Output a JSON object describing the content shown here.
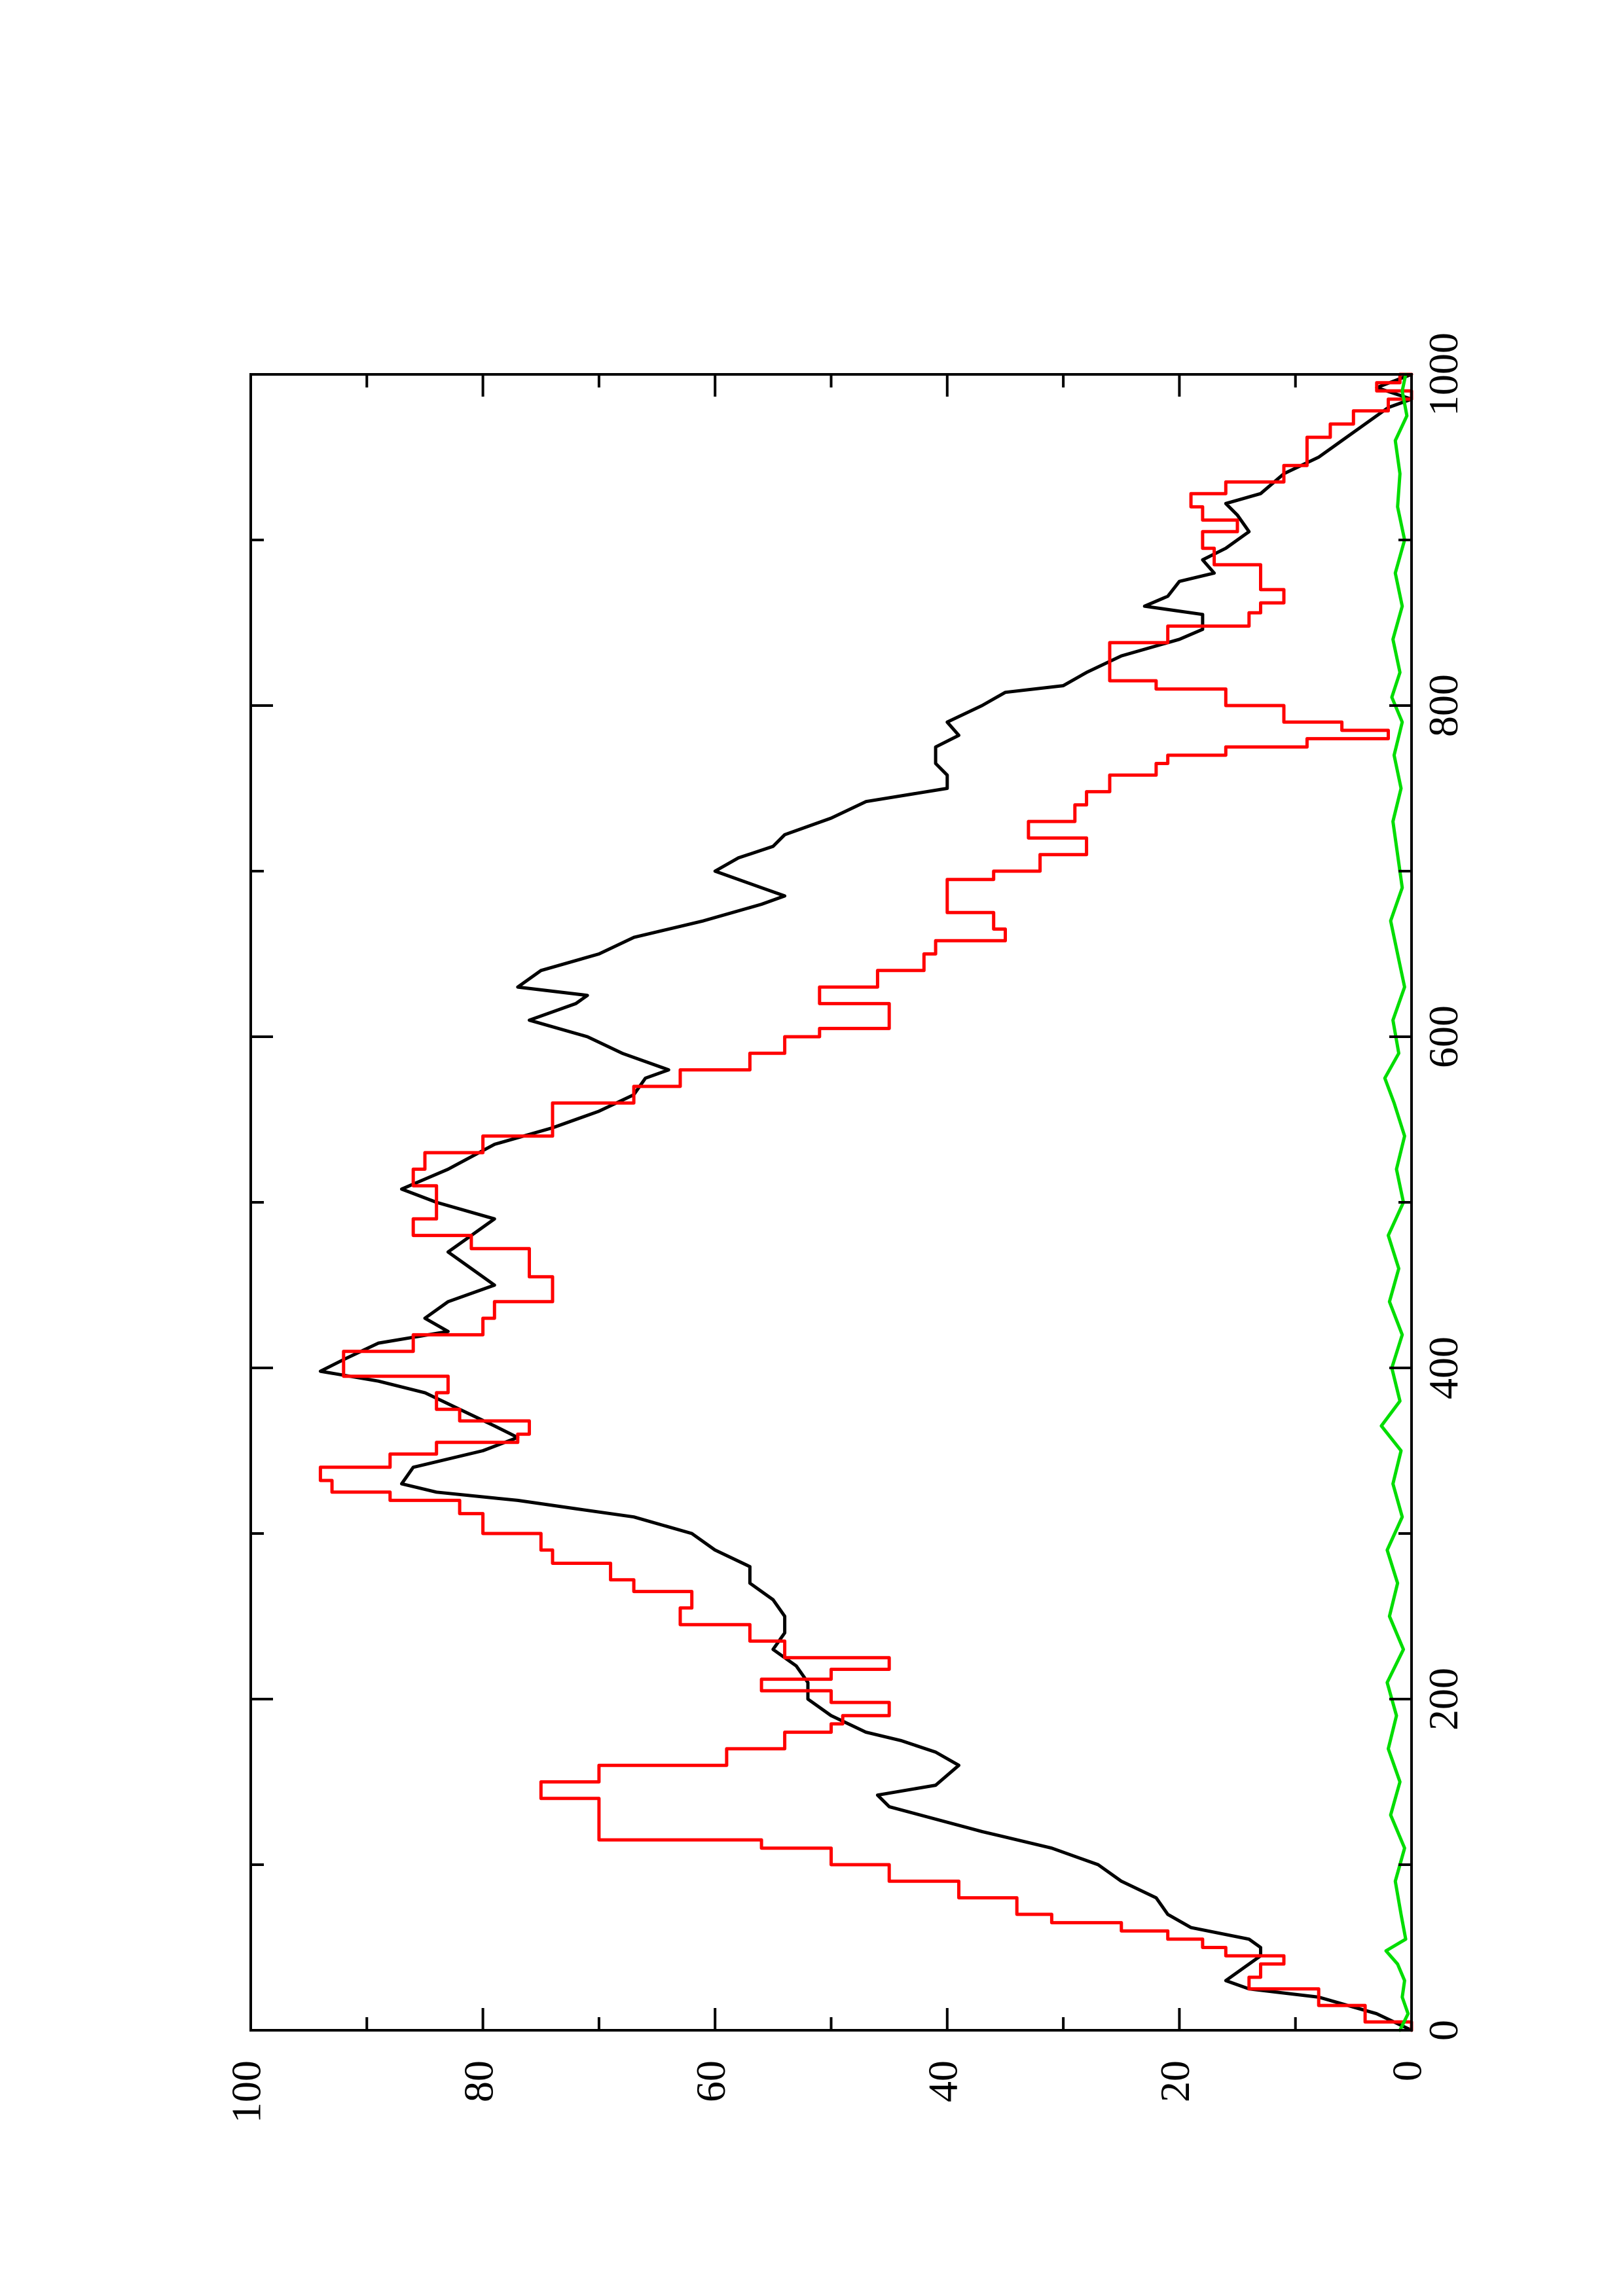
{
  "chart_data": {
    "type": "line",
    "orientation": "rotated-90-ccw",
    "xlim": [
      0,
      1000
    ],
    "ylim": [
      0,
      100
    ],
    "x_ticks": [
      0,
      200,
      400,
      600,
      800,
      1000
    ],
    "x_tick_labels": [
      "0",
      "200",
      "400",
      "600",
      "800",
      "1000"
    ],
    "x_minor_ticks": [
      100,
      300,
      500,
      700,
      900
    ],
    "y_ticks": [
      0,
      20,
      40,
      60,
      80,
      100
    ],
    "y_tick_labels": [
      "0",
      "20",
      "40",
      "60",
      "80",
      "100"
    ],
    "y_minor_ticks": [
      10,
      30,
      50,
      70,
      90
    ],
    "grid": false,
    "legend": "none",
    "series": [
      {
        "color": "#000000",
        "style": "smooth",
        "points": [
          [
            0,
            0
          ],
          [
            10,
            3
          ],
          [
            20,
            8
          ],
          [
            25,
            14
          ],
          [
            30,
            16
          ],
          [
            40,
            14
          ],
          [
            45,
            13
          ],
          [
            50,
            13
          ],
          [
            55,
            14
          ],
          [
            62,
            19
          ],
          [
            70,
            21
          ],
          [
            80,
            22
          ],
          [
            90,
            25
          ],
          [
            100,
            27
          ],
          [
            110,
            31
          ],
          [
            120,
            37
          ],
          [
            135,
            45
          ],
          [
            142,
            46
          ],
          [
            148,
            41
          ],
          [
            160,
            39
          ],
          [
            168,
            41
          ],
          [
            175,
            44
          ],
          [
            180,
            47
          ],
          [
            190,
            50
          ],
          [
            200,
            52
          ],
          [
            210,
            52
          ],
          [
            220,
            53
          ],
          [
            230,
            55
          ],
          [
            240,
            54
          ],
          [
            250,
            54
          ],
          [
            260,
            55
          ],
          [
            270,
            57
          ],
          [
            280,
            57
          ],
          [
            290,
            60
          ],
          [
            300,
            62
          ],
          [
            310,
            67
          ],
          [
            315,
            72
          ],
          [
            320,
            77
          ],
          [
            325,
            84
          ],
          [
            330,
            87
          ],
          [
            340,
            86
          ],
          [
            350,
            80
          ],
          [
            358,
            77
          ],
          [
            365,
            79
          ],
          [
            375,
            82
          ],
          [
            385,
            85
          ],
          [
            392,
            89
          ],
          [
            398,
            94
          ],
          [
            405,
            92
          ],
          [
            415,
            89
          ],
          [
            422,
            83
          ],
          [
            430,
            85
          ],
          [
            440,
            83
          ],
          [
            450,
            79
          ],
          [
            460,
            81
          ],
          [
            470,
            83
          ],
          [
            480,
            81
          ],
          [
            490,
            79
          ],
          [
            500,
            84
          ],
          [
            508,
            87
          ],
          [
            520,
            83
          ],
          [
            535,
            79
          ],
          [
            545,
            74
          ],
          [
            555,
            70
          ],
          [
            565,
            67
          ],
          [
            575,
            66
          ],
          [
            580,
            64
          ],
          [
            590,
            68
          ],
          [
            600,
            71
          ],
          [
            610,
            76
          ],
          [
            620,
            72
          ],
          [
            625,
            71
          ],
          [
            630,
            77
          ],
          [
            640,
            75
          ],
          [
            650,
            70
          ],
          [
            660,
            67
          ],
          [
            670,
            61
          ],
          [
            680,
            56
          ],
          [
            685,
            54
          ],
          [
            690,
            56
          ],
          [
            700,
            60
          ],
          [
            708,
            58
          ],
          [
            715,
            55
          ],
          [
            722,
            54
          ],
          [
            732,
            50
          ],
          [
            742,
            47
          ],
          [
            750,
            40
          ],
          [
            758,
            40
          ],
          [
            765,
            41
          ],
          [
            775,
            41
          ],
          [
            782,
            39
          ],
          [
            790,
            40
          ],
          [
            800,
            37
          ],
          [
            808,
            35
          ],
          [
            812,
            30
          ],
          [
            820,
            28
          ],
          [
            830,
            25
          ],
          [
            840,
            20
          ],
          [
            846,
            18
          ],
          [
            855,
            18
          ],
          [
            860,
            23
          ],
          [
            866,
            21
          ],
          [
            875,
            20
          ],
          [
            880,
            17
          ],
          [
            888,
            18
          ],
          [
            895,
            16
          ],
          [
            905,
            14
          ],
          [
            915,
            15
          ],
          [
            922,
            16
          ],
          [
            928,
            13
          ],
          [
            940,
            11
          ],
          [
            950,
            8
          ],
          [
            960,
            6
          ],
          [
            970,
            4
          ],
          [
            980,
            2
          ],
          [
            985,
            0
          ],
          [
            992,
            3
          ],
          [
            1000,
            0
          ]
        ]
      },
      {
        "color": "#ff0000",
        "style": "step",
        "points": [
          [
            0,
            0
          ],
          [
            5,
            4
          ],
          [
            15,
            8
          ],
          [
            25,
            14
          ],
          [
            32,
            13
          ],
          [
            40,
            11
          ],
          [
            45,
            16
          ],
          [
            50,
            18
          ],
          [
            55,
            21
          ],
          [
            60,
            25
          ],
          [
            65,
            31
          ],
          [
            70,
            34
          ],
          [
            80,
            39
          ],
          [
            90,
            45
          ],
          [
            100,
            50
          ],
          [
            110,
            56
          ],
          [
            115,
            70
          ],
          [
            120,
            70
          ],
          [
            130,
            70
          ],
          [
            140,
            75
          ],
          [
            145,
            75
          ],
          [
            150,
            70
          ],
          [
            160,
            59
          ],
          [
            170,
            54
          ],
          [
            180,
            50
          ],
          [
            185,
            49
          ],
          [
            190,
            45
          ],
          [
            198,
            50
          ],
          [
            205,
            56
          ],
          [
            212,
            50
          ],
          [
            218,
            45
          ],
          [
            225,
            54
          ],
          [
            235,
            57
          ],
          [
            245,
            63
          ],
          [
            255,
            62
          ],
          [
            265,
            67
          ],
          [
            272,
            69
          ],
          [
            282,
            74
          ],
          [
            290,
            75
          ],
          [
            300,
            80
          ],
          [
            312,
            82
          ],
          [
            320,
            88
          ],
          [
            325,
            93
          ],
          [
            332,
            94
          ],
          [
            340,
            88
          ],
          [
            348,
            84
          ],
          [
            355,
            77
          ],
          [
            360,
            76
          ],
          [
            368,
            82
          ],
          [
            375,
            84
          ],
          [
            385,
            83
          ],
          [
            395,
            92
          ],
          [
            402,
            92
          ],
          [
            410,
            86
          ],
          [
            420,
            80
          ],
          [
            430,
            79
          ],
          [
            440,
            74
          ],
          [
            450,
            74
          ],
          [
            455,
            76
          ],
          [
            465,
            76
          ],
          [
            472,
            81
          ],
          [
            480,
            86
          ],
          [
            490,
            84
          ],
          [
            500,
            84
          ],
          [
            510,
            86
          ],
          [
            520,
            85
          ],
          [
            530,
            80
          ],
          [
            540,
            74
          ],
          [
            550,
            74
          ],
          [
            560,
            67
          ],
          [
            570,
            63
          ],
          [
            580,
            57
          ],
          [
            590,
            54
          ],
          [
            600,
            51
          ],
          [
            605,
            45
          ],
          [
            615,
            45
          ],
          [
            620,
            51
          ],
          [
            630,
            46
          ],
          [
            640,
            42
          ],
          [
            650,
            41
          ],
          [
            658,
            35
          ],
          [
            665,
            36
          ],
          [
            675,
            40
          ],
          [
            685,
            40
          ],
          [
            695,
            36
          ],
          [
            700,
            32
          ],
          [
            710,
            28
          ],
          [
            720,
            33
          ],
          [
            730,
            29
          ],
          [
            740,
            28
          ],
          [
            748,
            26
          ],
          [
            758,
            22
          ],
          [
            765,
            21
          ],
          [
            770,
            16
          ],
          [
            775,
            9
          ],
          [
            780,
            2
          ],
          [
            785,
            6
          ],
          [
            790,
            11
          ],
          [
            800,
            16
          ],
          [
            810,
            22
          ],
          [
            815,
            26
          ],
          [
            828,
            26
          ],
          [
            838,
            21
          ],
          [
            848,
            14
          ],
          [
            856,
            13
          ],
          [
            862,
            11
          ],
          [
            870,
            13
          ],
          [
            878,
            13
          ],
          [
            885,
            17
          ],
          [
            895,
            18
          ],
          [
            905,
            15
          ],
          [
            912,
            18
          ],
          [
            920,
            19
          ],
          [
            928,
            16
          ],
          [
            935,
            11
          ],
          [
            945,
            9
          ],
          [
            955,
            9
          ],
          [
            962,
            7
          ],
          [
            970,
            5
          ],
          [
            978,
            2
          ],
          [
            985,
            0
          ],
          [
            990,
            3
          ],
          [
            995,
            1
          ],
          [
            1000,
            0
          ]
        ]
      },
      {
        "color": "#00dd00",
        "style": "noise",
        "points": [
          [
            0,
            1.0
          ],
          [
            10,
            0.3
          ],
          [
            20,
            0.8
          ],
          [
            30,
            0.6
          ],
          [
            40,
            1.2
          ],
          [
            48,
            2.2
          ],
          [
            55,
            0.5
          ],
          [
            70,
            0.9
          ],
          [
            90,
            1.4
          ],
          [
            110,
            0.6
          ],
          [
            130,
            1.8
          ],
          [
            150,
            1.0
          ],
          [
            170,
            2.0
          ],
          [
            190,
            1.3
          ],
          [
            210,
            2.1
          ],
          [
            230,
            0.7
          ],
          [
            250,
            1.9
          ],
          [
            270,
            1.2
          ],
          [
            290,
            2.1
          ],
          [
            310,
            0.8
          ],
          [
            330,
            1.6
          ],
          [
            350,
            0.9
          ],
          [
            365,
            2.6
          ],
          [
            380,
            1.0
          ],
          [
            400,
            1.7
          ],
          [
            420,
            0.8
          ],
          [
            440,
            1.9
          ],
          [
            460,
            1.1
          ],
          [
            480,
            2.0
          ],
          [
            500,
            0.7
          ],
          [
            520,
            1.3
          ],
          [
            540,
            0.6
          ],
          [
            560,
            1.5
          ],
          [
            575,
            2.3
          ],
          [
            590,
            1.1
          ],
          [
            610,
            1.6
          ],
          [
            630,
            0.6
          ],
          [
            650,
            1.2
          ],
          [
            670,
            1.8
          ],
          [
            690,
            0.8
          ],
          [
            710,
            1.2
          ],
          [
            730,
            1.6
          ],
          [
            750,
            0.9
          ],
          [
            770,
            1.5
          ],
          [
            790,
            0.8
          ],
          [
            805,
            1.7
          ],
          [
            820,
            1.0
          ],
          [
            840,
            1.6
          ],
          [
            860,
            0.8
          ],
          [
            880,
            1.4
          ],
          [
            900,
            0.6
          ],
          [
            920,
            1.2
          ],
          [
            940,
            1.0
          ],
          [
            960,
            1.4
          ],
          [
            975,
            0.4
          ],
          [
            990,
            0.8
          ],
          [
            1000,
            0.5
          ]
        ]
      }
    ]
  }
}
